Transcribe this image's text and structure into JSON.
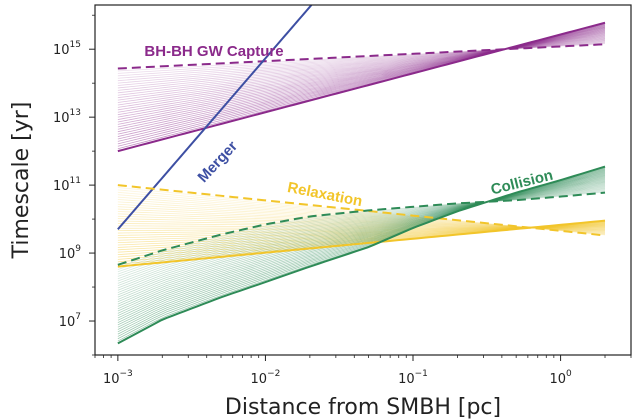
{
  "chart_data": {
    "type": "area",
    "xlabel": "Distance from SMBH [pc]",
    "ylabel": "Timescale [yr]",
    "x_scale": "log",
    "y_scale": "log",
    "xlim": [
      0.0007,
      3.0
    ],
    "ylim": [
      1000000.0,
      2e+16
    ],
    "x_ticks": [
      {
        "base": "10",
        "exp": "−3",
        "value": 0.001
      },
      {
        "base": "10",
        "exp": "−2",
        "value": 0.01
      },
      {
        "base": "10",
        "exp": "−1",
        "value": 0.1
      },
      {
        "base": "10",
        "exp": "0",
        "value": 1
      }
    ],
    "y_ticks": [
      {
        "base": "10",
        "exp": "7",
        "value": 10000000.0
      },
      {
        "base": "10",
        "exp": "9",
        "value": 1000000000.0
      },
      {
        "base": "10",
        "exp": "11",
        "value": 100000000000.0
      },
      {
        "base": "10",
        "exp": "13",
        "value": 10000000000000.0
      },
      {
        "base": "10",
        "exp": "15",
        "value": 1000000000000000.0
      }
    ],
    "grid": false,
    "series": [
      {
        "name": "BH-BH GW Capture",
        "color": "#8b2a8b",
        "shaded": true,
        "dashed": {
          "x": [
            0.001,
            2.0
          ],
          "y": [
            270000000000000.0,
            1400000000000000.0
          ]
        },
        "solid": {
          "x": [
            0.001,
            2.0
          ],
          "y": [
            1000000000000.0,
            6000000000000000.0
          ]
        }
      },
      {
        "name": "Merger",
        "color": "#3d4fa3",
        "shaded": false,
        "solid": {
          "x": [
            0.001,
            0.0205
          ],
          "y": [
            5000000000.0,
            2e+16
          ]
        }
      },
      {
        "name": "Relaxation",
        "color": "#f2c52a",
        "shaded": true,
        "dashed": {
          "x": [
            0.001,
            2.0
          ],
          "y": [
            100000000000.0,
            3300000000.0
          ]
        },
        "solid": {
          "x": [
            0.001,
            2.0
          ],
          "y": [
            400000000.0,
            9000000000.0
          ]
        }
      },
      {
        "name": "Collision",
        "color": "#2e8b57",
        "shaded": true,
        "dashed": {
          "x": [
            0.001,
            0.002,
            0.005,
            0.01,
            0.02,
            0.05,
            0.1,
            0.2,
            0.5,
            1.0,
            2.0
          ],
          "y": [
            450000000.0,
            1200000000.0,
            3500000000.0,
            7000000000.0,
            12000000000.0,
            18000000000.0,
            23000000000.0,
            29000000000.0,
            36000000000.0,
            46000000000.0,
            60000000000.0
          ]
        },
        "solid": {
          "x": [
            0.001,
            0.002,
            0.005,
            0.01,
            0.02,
            0.05,
            0.1,
            0.2,
            0.5,
            1.0,
            2.0
          ],
          "y": [
            2200000.0,
            11000000.0,
            50000000.0,
            140000000.0,
            400000000.0,
            1500000000.0,
            5500000000.0,
            17000000000.0,
            60000000000.0,
            140000000000.0,
            350000000000.0
          ]
        }
      }
    ]
  }
}
